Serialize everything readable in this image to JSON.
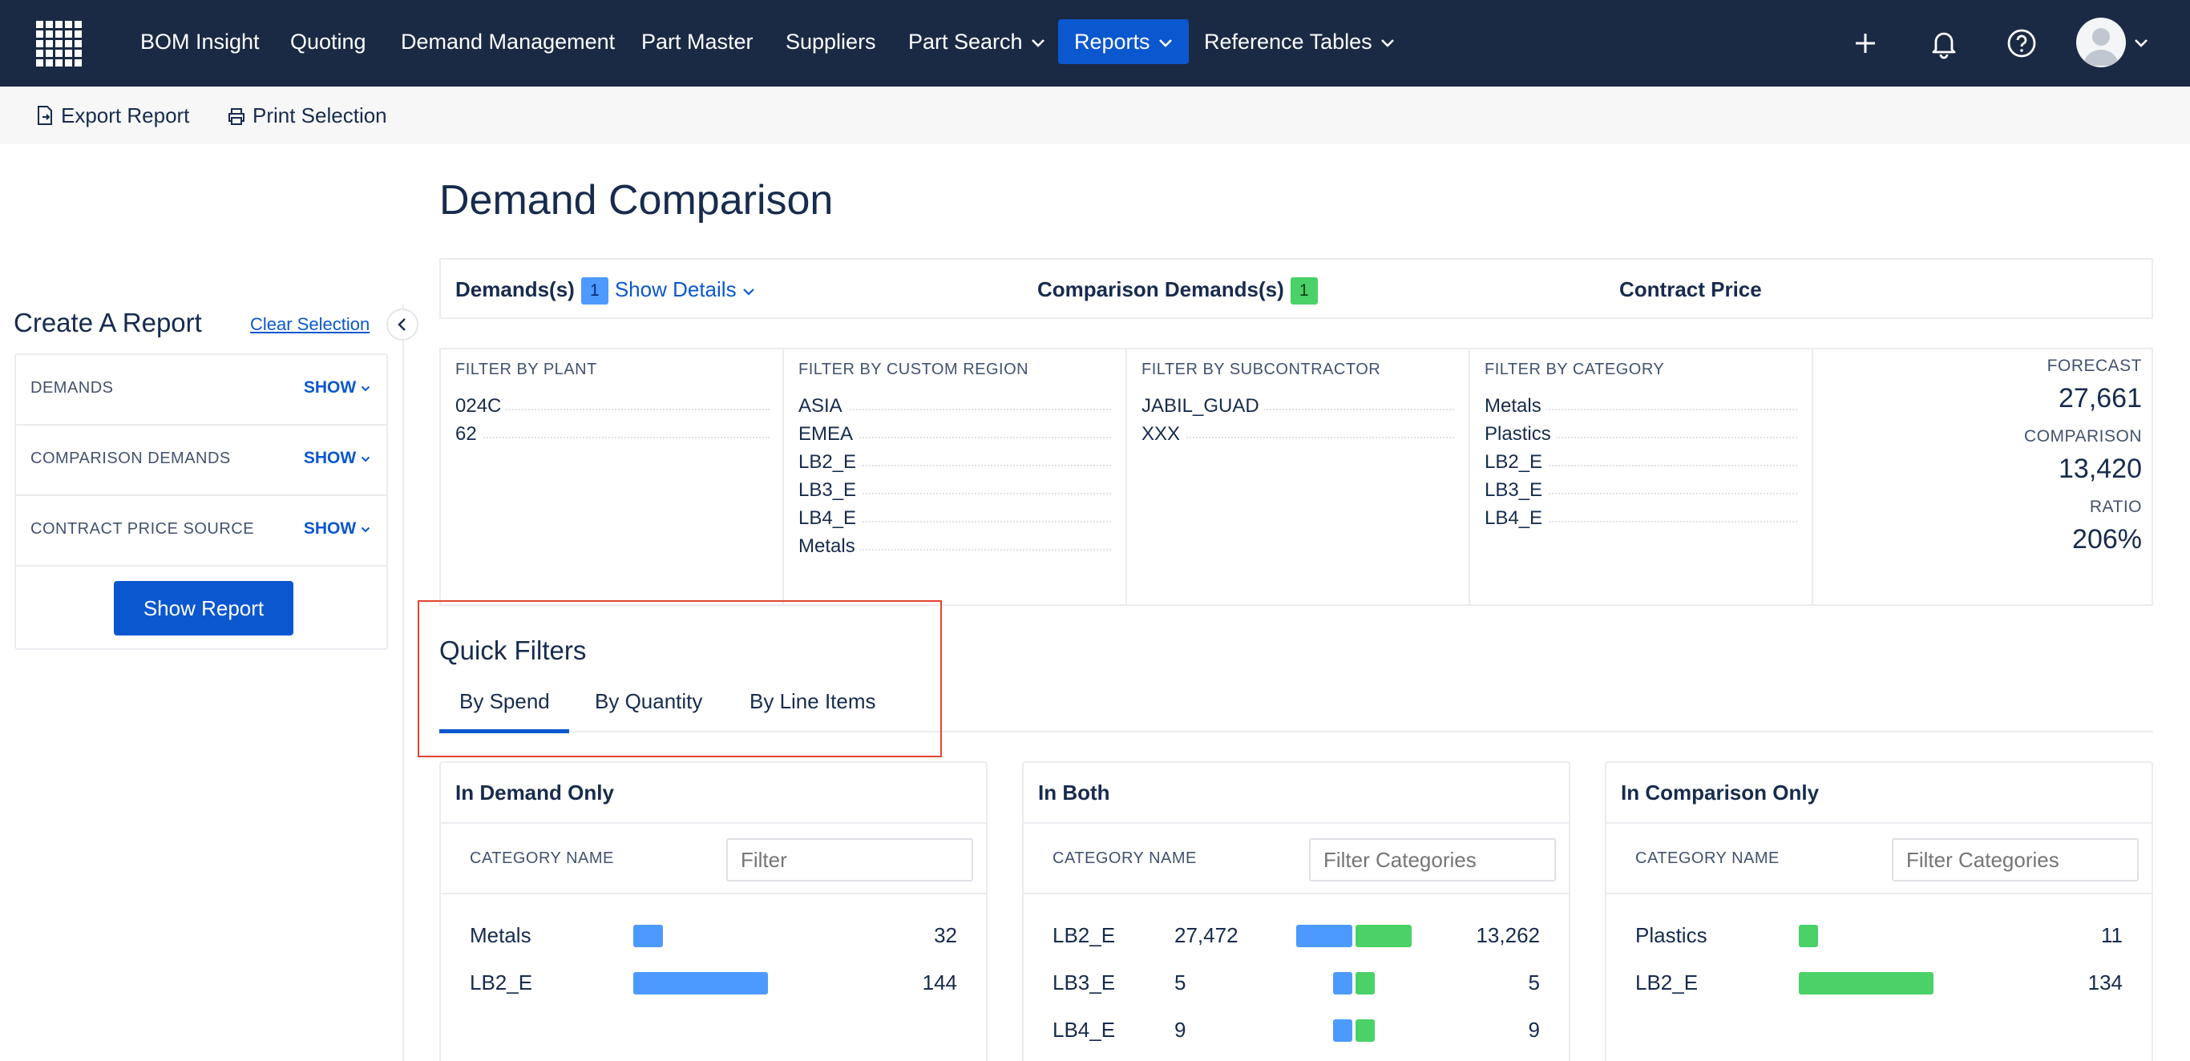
{
  "nav": {
    "items": [
      "BOM Insight",
      "Quoting",
      "Demand Management",
      "Part Master",
      "Suppliers",
      "Part Search",
      "Reports",
      "Reference Tables"
    ],
    "active": "Reports",
    "accent": "#0b57d0",
    "background": "#1b2a44"
  },
  "toolbar": {
    "export_label": "Export Report",
    "print_label": "Print Selection"
  },
  "sidebar": {
    "title": "Create A Report",
    "clear_label": "Clear Selection",
    "rows": [
      {
        "label": "DEMANDS",
        "action": "SHOW"
      },
      {
        "label": "COMPARISON DEMANDS",
        "action": "SHOW"
      },
      {
        "label": "CONTRACT PRICE SOURCE",
        "action": "SHOW"
      }
    ],
    "button_label": "Show Report"
  },
  "page": {
    "title": "Demand Comparison"
  },
  "summary": {
    "demands_label": "Demands(s)",
    "demands_count": "1",
    "show_details": "Show Details",
    "comparison_label": "Comparison Demands(s)",
    "comparison_count": "1",
    "contract_label": "Contract Price"
  },
  "filters": {
    "plant": {
      "heading": "FILTER BY PLANT",
      "items": [
        "024C",
        "62"
      ]
    },
    "region": {
      "heading": "FILTER BY CUSTOM REGION",
      "items": [
        "ASIA",
        "EMEA",
        "LB2_E",
        "LB3_E",
        "LB4_E",
        "Metals"
      ]
    },
    "subcontractor": {
      "heading": "FILTER BY SUBCONTRACTOR",
      "items": [
        "JABIL_GUAD",
        "XXX"
      ]
    },
    "category": {
      "heading": "FILTER BY CATEGORY",
      "items": [
        "Metals",
        "Plastics",
        "LB2_E",
        "LB3_E",
        "LB4_E"
      ]
    },
    "stats": {
      "forecast_label": "FORECAST",
      "forecast_value": "27,661",
      "comparison_label": "COMPARISON",
      "comparison_value": "13,420",
      "ratio_label": "RATIO",
      "ratio_value": "206%"
    }
  },
  "quick_filters": {
    "title": "Quick Filters",
    "tabs": [
      "By Spend",
      "By Quantity",
      "By Line Items"
    ],
    "active_tab": "By Spend"
  },
  "cards": {
    "demand_only": {
      "title": "In Demand Only",
      "column": "CATEGORY NAME",
      "placeholder": "Filter",
      "rows": [
        {
          "name": "Metals",
          "value": "32",
          "share": 0.22
        },
        {
          "name": "LB2_E",
          "value": "144",
          "share": 1.0
        }
      ]
    },
    "both": {
      "title": "In Both",
      "column": "CATEGORY NAME",
      "placeholder": "Filter Categories",
      "rows": [
        {
          "name": "LB2_E",
          "demand": "27,472",
          "comparison": "13,262",
          "demand_share": 1.0,
          "comparison_share": 1.0
        },
        {
          "name": "LB3_E",
          "demand": "5",
          "comparison": "5",
          "demand_share": 0.05,
          "comparison_share": 0.05
        },
        {
          "name": "LB4_E",
          "demand": "9",
          "comparison": "9",
          "demand_share": 0.05,
          "comparison_share": 0.05
        }
      ]
    },
    "comparison_only": {
      "title": "In Comparison Only",
      "column": "CATEGORY NAME",
      "placeholder": "Filter Categories",
      "rows": [
        {
          "name": "Plastics",
          "value": "11",
          "share": 0.13
        },
        {
          "name": "LB2_E",
          "value": "134",
          "share": 1.0
        }
      ]
    }
  },
  "colors": {
    "demand_bar": "#4c9aff",
    "comparison_bar": "#4ad167",
    "highlight": "#e2452f"
  }
}
